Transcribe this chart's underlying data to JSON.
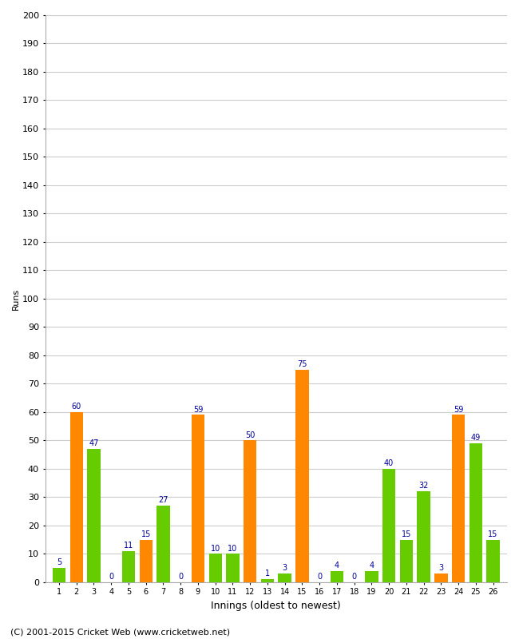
{
  "innings": [
    1,
    2,
    3,
    4,
    5,
    6,
    7,
    8,
    9,
    10,
    11,
    12,
    13,
    14,
    15,
    16,
    17,
    18,
    19,
    20,
    21,
    22,
    23,
    24,
    25,
    26
  ],
  "values": [
    5,
    60,
    47,
    0,
    11,
    15,
    27,
    0,
    59,
    10,
    10,
    50,
    1,
    3,
    75,
    0,
    4,
    0,
    4,
    40,
    15,
    32,
    3,
    59,
    49,
    15
  ],
  "colors": [
    "#66cc00",
    "#ff8800",
    "#66cc00",
    "#ff8800",
    "#66cc00",
    "#ff8800",
    "#66cc00",
    "#ff8800",
    "#ff8800",
    "#66cc00",
    "#66cc00",
    "#ff8800",
    "#66cc00",
    "#66cc00",
    "#ff8800",
    "#ff8800",
    "#66cc00",
    "#ff8800",
    "#66cc00",
    "#66cc00",
    "#66cc00",
    "#66cc00",
    "#ff8800",
    "#ff8800",
    "#66cc00",
    "#66cc00"
  ],
  "xlabel": "Innings (oldest to newest)",
  "ylabel": "Runs",
  "ylim": [
    0,
    200
  ],
  "yticks": [
    0,
    10,
    20,
    30,
    40,
    50,
    60,
    70,
    80,
    90,
    100,
    110,
    120,
    130,
    140,
    150,
    160,
    170,
    180,
    190,
    200
  ],
  "footer": "(C) 2001-2015 Cricket Web (www.cricketweb.net)",
  "label_color": "#000099",
  "bg_color": "#ffffff",
  "grid_color": "#cccccc",
  "bar_width": 0.75
}
